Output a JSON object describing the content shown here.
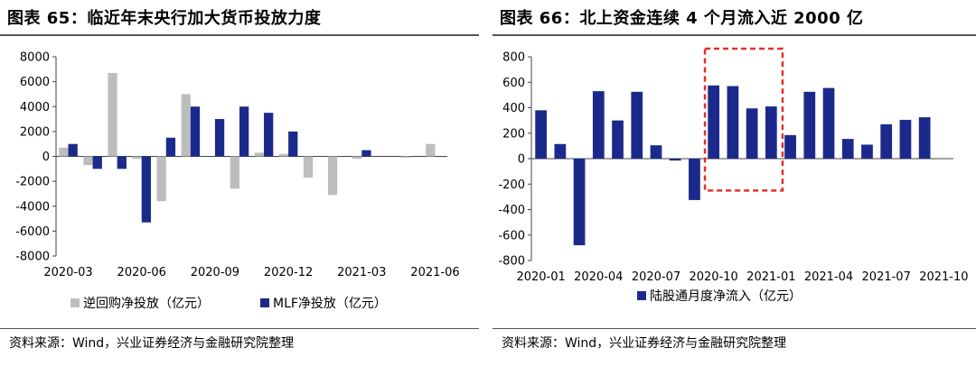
{
  "left": {
    "title": "图表 65：临近年末央行加大货币投放力度",
    "source": "资料来源：Wind，兴业证券经济与金融研究院整理"
  },
  "right": {
    "title": "图表 66：北上资金连续 4 个月流入近 2000 亿",
    "source": "资料来源：Wind，兴业证券经济与金融研究院整理"
  },
  "colors": {
    "navy": "#1b2a8a",
    "gray": "#bdbdbd",
    "highlight": "#e0302a"
  },
  "chart_data": [
    {
      "type": "bar",
      "categories": [
        "2020-03",
        "2020-04",
        "2020-05",
        "2020-06",
        "2020-07",
        "2020-08",
        "2020-09",
        "2020-10",
        "2020-11",
        "2020-12",
        "2021-01",
        "2021-02",
        "2021-03",
        "2021-04",
        "2021-05",
        "2021-06"
      ],
      "x_tick_labels": [
        "2020-03",
        "2020-06",
        "2020-09",
        "2020-12",
        "2021-03",
        "2021-06"
      ],
      "series": [
        {
          "name": "逆回购净投放（亿元）",
          "color": "#bdbdbd",
          "values": [
            700,
            -700,
            6700,
            -200,
            -3600,
            5000,
            0,
            -2600,
            300,
            200,
            -1700,
            -3100,
            -200,
            0,
            -100,
            1000
          ]
        },
        {
          "name": "MLF净投放（亿元）",
          "color": "#1b2a8a",
          "values": [
            1000,
            -1000,
            -1000,
            -5300,
            1500,
            4000,
            3000,
            4000,
            3500,
            2000,
            0,
            0,
            500,
            0,
            0,
            0
          ]
        }
      ],
      "ylim": [
        -8000,
        8000
      ],
      "yticks": [
        "-8000",
        "-6000",
        "-4000",
        "-2000",
        "0",
        "2000",
        "4000",
        "6000",
        "8000"
      ],
      "legend_position": "bottom"
    },
    {
      "type": "bar",
      "categories": [
        "2020-01",
        "2020-02",
        "2020-03",
        "2020-04",
        "2020-05",
        "2020-06",
        "2020-07",
        "2020-08",
        "2020-09",
        "2020-10",
        "2020-11",
        "2020-12",
        "2021-01",
        "2021-02",
        "2021-03",
        "2021-04",
        "2021-05",
        "2021-06",
        "2021-07",
        "2021-08",
        "2021-09",
        "2021-10"
      ],
      "x_tick_labels": [
        "2020-01",
        "2020-04",
        "2020-07",
        "2020-10",
        "2021-01",
        "2021-04",
        "2021-07",
        "2021-10"
      ],
      "series": [
        {
          "name": "陆股通月度净流入（亿元）",
          "color": "#1b2a8a",
          "values": [
            380,
            115,
            -680,
            530,
            300,
            525,
            105,
            -15,
            -325,
            575,
            570,
            395,
            410,
            185,
            525,
            555,
            155,
            110,
            270,
            305,
            325,
            0
          ]
        }
      ],
      "ylim": [
        -800,
        800
      ],
      "yticks": [
        "-800",
        "-600",
        "-400",
        "-200",
        "0",
        "200",
        "400",
        "600",
        "800"
      ],
      "highlight_range": [
        "2020-10",
        "2021-01"
      ],
      "legend_position": "bottom"
    }
  ]
}
